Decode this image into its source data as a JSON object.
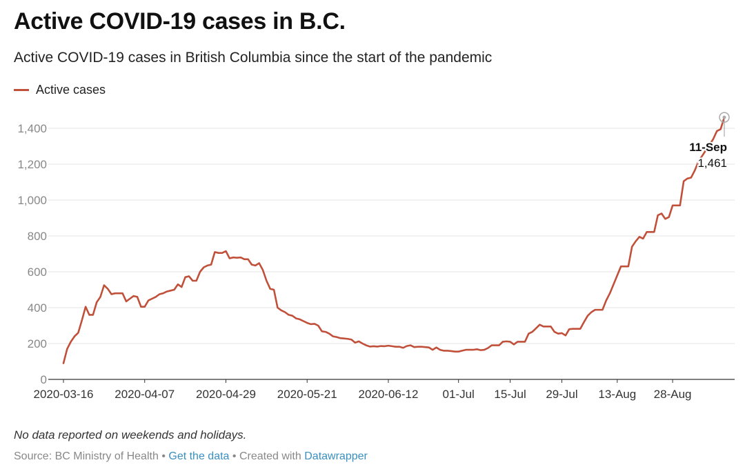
{
  "header": {
    "title": "Active COVID-19 cases in B.C.",
    "subtitle": "Active COVID-19 cases in British Columbia since the start of the pandemic"
  },
  "legend": {
    "label": "Active cases",
    "color": "#c0503a"
  },
  "annotation": {
    "date": "11-Sep",
    "value": "1,461"
  },
  "note": "No data reported on weekends and holidays.",
  "footer": {
    "source": "Source: BC Ministry of Health",
    "sep1": "•",
    "get_data": "Get the data",
    "sep2": "•",
    "created": "Created with",
    "datawrapper": "Datawrapper"
  },
  "chart_data": {
    "type": "line",
    "title": "Active COVID-19 cases in B.C.",
    "subtitle": "Active COVID-19 cases in British Columbia since the start of the pandemic",
    "xlabel": "",
    "ylabel": "",
    "x_range": [
      "2020-03-16",
      "2020-09-11"
    ],
    "ylim": [
      0,
      1500
    ],
    "y_ticks": [
      0,
      200,
      400,
      600,
      800,
      1000,
      1200,
      1400
    ],
    "y_tick_labels": [
      "0",
      "200",
      "400",
      "600",
      "800",
      "1,000",
      "1,200",
      "1,400"
    ],
    "x_ticks": [
      {
        "date": "2020-03-16",
        "label": "2020-03-16"
      },
      {
        "date": "2020-04-07",
        "label": "2020-04-07"
      },
      {
        "date": "2020-04-29",
        "label": "2020-04-29"
      },
      {
        "date": "2020-05-21",
        "label": "2020-05-21"
      },
      {
        "date": "2020-06-12",
        "label": "2020-06-12"
      },
      {
        "date": "2020-07-01",
        "label": "01-Jul"
      },
      {
        "date": "2020-07-15",
        "label": "15-Jul"
      },
      {
        "date": "2020-07-29",
        "label": "29-Jul"
      },
      {
        "date": "2020-08-13",
        "label": "13-Aug"
      },
      {
        "date": "2020-08-28",
        "label": "28-Aug"
      }
    ],
    "grid": true,
    "legend_position": "top-left",
    "series": [
      {
        "name": "Active cases",
        "color": "#c0503a",
        "points": [
          [
            "2020-03-16",
            90
          ],
          [
            "2020-03-17",
            170
          ],
          [
            "2020-03-18",
            210
          ],
          [
            "2020-03-19",
            240
          ],
          [
            "2020-03-20",
            260
          ],
          [
            "2020-03-21",
            330
          ],
          [
            "2020-03-22",
            405
          ],
          [
            "2020-03-23",
            360
          ],
          [
            "2020-03-24",
            360
          ],
          [
            "2020-03-25",
            430
          ],
          [
            "2020-03-26",
            460
          ],
          [
            "2020-03-27",
            525
          ],
          [
            "2020-03-28",
            505
          ],
          [
            "2020-03-29",
            475
          ],
          [
            "2020-03-30",
            480
          ],
          [
            "2020-03-31",
            480
          ],
          [
            "2020-04-01",
            480
          ],
          [
            "2020-04-02",
            435
          ],
          [
            "2020-04-03",
            450
          ],
          [
            "2020-04-04",
            465
          ],
          [
            "2020-04-05",
            460
          ],
          [
            "2020-04-06",
            405
          ],
          [
            "2020-04-07",
            405
          ],
          [
            "2020-04-08",
            440
          ],
          [
            "2020-04-09",
            450
          ],
          [
            "2020-04-10",
            460
          ],
          [
            "2020-04-11",
            475
          ],
          [
            "2020-04-12",
            480
          ],
          [
            "2020-04-13",
            490
          ],
          [
            "2020-04-14",
            495
          ],
          [
            "2020-04-15",
            500
          ],
          [
            "2020-04-16",
            530
          ],
          [
            "2020-04-17",
            515
          ],
          [
            "2020-04-18",
            570
          ],
          [
            "2020-04-19",
            575
          ],
          [
            "2020-04-20",
            550
          ],
          [
            "2020-04-21",
            550
          ],
          [
            "2020-04-22",
            600
          ],
          [
            "2020-04-23",
            625
          ],
          [
            "2020-04-24",
            635
          ],
          [
            "2020-04-25",
            640
          ],
          [
            "2020-04-26",
            710
          ],
          [
            "2020-04-27",
            705
          ],
          [
            "2020-04-28",
            705
          ],
          [
            "2020-04-29",
            715
          ],
          [
            "2020-04-30",
            675
          ],
          [
            "2020-05-01",
            680
          ],
          [
            "2020-05-02",
            678
          ],
          [
            "2020-05-03",
            680
          ],
          [
            "2020-05-04",
            670
          ],
          [
            "2020-05-05",
            670
          ],
          [
            "2020-05-06",
            640
          ],
          [
            "2020-05-07",
            635
          ],
          [
            "2020-05-08",
            648
          ],
          [
            "2020-05-09",
            610
          ],
          [
            "2020-05-10",
            550
          ],
          [
            "2020-05-11",
            505
          ],
          [
            "2020-05-12",
            500
          ],
          [
            "2020-05-13",
            400
          ],
          [
            "2020-05-14",
            385
          ],
          [
            "2020-05-15",
            375
          ],
          [
            "2020-05-16",
            360
          ],
          [
            "2020-05-17",
            355
          ],
          [
            "2020-05-18",
            340
          ],
          [
            "2020-05-19",
            335
          ],
          [
            "2020-05-20",
            325
          ],
          [
            "2020-05-21",
            315
          ],
          [
            "2020-05-22",
            308
          ],
          [
            "2020-05-23",
            310
          ],
          [
            "2020-05-24",
            300
          ],
          [
            "2020-05-25",
            268
          ],
          [
            "2020-05-26",
            265
          ],
          [
            "2020-05-27",
            255
          ],
          [
            "2020-05-28",
            240
          ],
          [
            "2020-05-29",
            236
          ],
          [
            "2020-05-30",
            230
          ],
          [
            "2020-05-31",
            228
          ],
          [
            "2020-06-01",
            226
          ],
          [
            "2020-06-02",
            222
          ],
          [
            "2020-06-03",
            205
          ],
          [
            "2020-06-04",
            212
          ],
          [
            "2020-06-05",
            200
          ],
          [
            "2020-06-06",
            190
          ],
          [
            "2020-06-07",
            183
          ],
          [
            "2020-06-08",
            185
          ],
          [
            "2020-06-09",
            183
          ],
          [
            "2020-06-10",
            186
          ],
          [
            "2020-06-11",
            185
          ],
          [
            "2020-06-12",
            188
          ],
          [
            "2020-06-13",
            185
          ],
          [
            "2020-06-14",
            182
          ],
          [
            "2020-06-15",
            182
          ],
          [
            "2020-06-16",
            176
          ],
          [
            "2020-06-17",
            186
          ],
          [
            "2020-06-18",
            190
          ],
          [
            "2020-06-19",
            180
          ],
          [
            "2020-06-20",
            182
          ],
          [
            "2020-06-21",
            182
          ],
          [
            "2020-06-22",
            180
          ],
          [
            "2020-06-23",
            178
          ],
          [
            "2020-06-24",
            165
          ],
          [
            "2020-06-25",
            178
          ],
          [
            "2020-06-26",
            165
          ],
          [
            "2020-06-27",
            160
          ],
          [
            "2020-06-28",
            160
          ],
          [
            "2020-06-29",
            158
          ],
          [
            "2020-06-30",
            155
          ],
          [
            "2020-07-01",
            155
          ],
          [
            "2020-07-02",
            160
          ],
          [
            "2020-07-03",
            165
          ],
          [
            "2020-07-04",
            165
          ],
          [
            "2020-07-05",
            165
          ],
          [
            "2020-07-06",
            168
          ],
          [
            "2020-07-07",
            163
          ],
          [
            "2020-07-08",
            165
          ],
          [
            "2020-07-09",
            175
          ],
          [
            "2020-07-10",
            190
          ],
          [
            "2020-07-11",
            190
          ],
          [
            "2020-07-12",
            190
          ],
          [
            "2020-07-13",
            210
          ],
          [
            "2020-07-14",
            212
          ],
          [
            "2020-07-15",
            210
          ],
          [
            "2020-07-16",
            195
          ],
          [
            "2020-07-17",
            210
          ],
          [
            "2020-07-18",
            210
          ],
          [
            "2020-07-19",
            210
          ],
          [
            "2020-07-20",
            255
          ],
          [
            "2020-07-21",
            265
          ],
          [
            "2020-07-22",
            285
          ],
          [
            "2020-07-23",
            305
          ],
          [
            "2020-07-24",
            295
          ],
          [
            "2020-07-25",
            295
          ],
          [
            "2020-07-26",
            295
          ],
          [
            "2020-07-27",
            265
          ],
          [
            "2020-07-28",
            255
          ],
          [
            "2020-07-29",
            258
          ],
          [
            "2020-07-30",
            245
          ],
          [
            "2020-07-31",
            280
          ],
          [
            "2020-08-01",
            282
          ],
          [
            "2020-08-02",
            282
          ],
          [
            "2020-08-03",
            282
          ],
          [
            "2020-08-04",
            320
          ],
          [
            "2020-08-05",
            355
          ],
          [
            "2020-08-06",
            375
          ],
          [
            "2020-08-07",
            388
          ],
          [
            "2020-08-08",
            388
          ],
          [
            "2020-08-09",
            388
          ],
          [
            "2020-08-10",
            440
          ],
          [
            "2020-08-11",
            480
          ],
          [
            "2020-08-12",
            530
          ],
          [
            "2020-08-13",
            580
          ],
          [
            "2020-08-14",
            630
          ],
          [
            "2020-08-15",
            630
          ],
          [
            "2020-08-16",
            630
          ],
          [
            "2020-08-17",
            740
          ],
          [
            "2020-08-18",
            770
          ],
          [
            "2020-08-19",
            795
          ],
          [
            "2020-08-20",
            785
          ],
          [
            "2020-08-21",
            822
          ],
          [
            "2020-08-22",
            822
          ],
          [
            "2020-08-23",
            822
          ],
          [
            "2020-08-24",
            915
          ],
          [
            "2020-08-25",
            925
          ],
          [
            "2020-08-26",
            895
          ],
          [
            "2020-08-27",
            905
          ],
          [
            "2020-08-28",
            970
          ],
          [
            "2020-08-29",
            970
          ],
          [
            "2020-08-30",
            970
          ],
          [
            "2020-08-31",
            1105
          ],
          [
            "2020-09-01",
            1120
          ],
          [
            "2020-09-02",
            1125
          ],
          [
            "2020-09-03",
            1165
          ],
          [
            "2020-09-04",
            1215
          ],
          [
            "2020-09-08",
            1340
          ],
          [
            "2020-09-09",
            1385
          ],
          [
            "2020-09-10",
            1395
          ],
          [
            "2020-09-11",
            1461
          ]
        ]
      }
    ]
  }
}
